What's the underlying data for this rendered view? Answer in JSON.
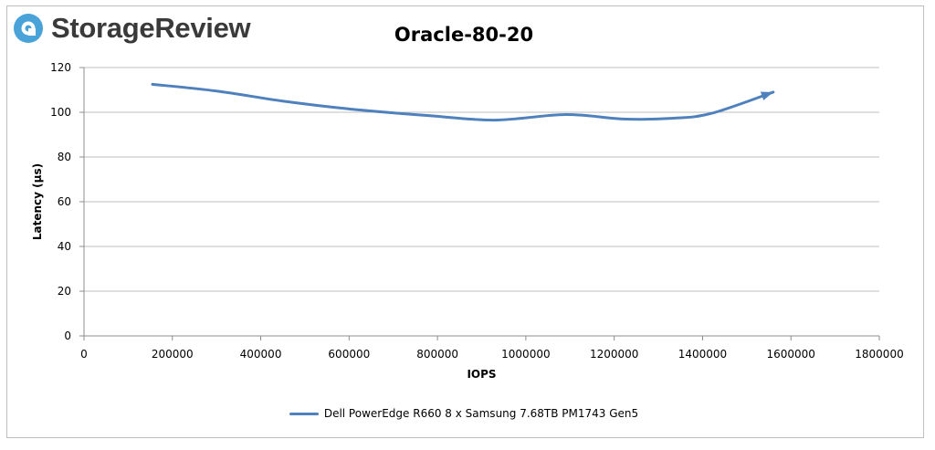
{
  "logo": {
    "text": "StorageReview",
    "accent": "#4aa3d8",
    "icon": "storagereview-logo-icon"
  },
  "chart_data": {
    "type": "line",
    "title": "Oracle-80-20",
    "xlabel": "IOPS",
    "ylabel": "Latency (µs)",
    "xlim": [
      0,
      1800000
    ],
    "ylim": [
      0,
      120
    ],
    "x_ticks": [
      "0",
      "200000",
      "400000",
      "600000",
      "800000",
      "1000000",
      "1200000",
      "1400000",
      "1600000",
      "1800000"
    ],
    "y_ticks": [
      "0",
      "20",
      "40",
      "60",
      "80",
      "100",
      "120"
    ],
    "grid": "horizontal",
    "legend_position": "bottom",
    "series": [
      {
        "name": "Dell PowerEdge R660 8 x Samsung 7.68TB PM1743 Gen5",
        "color": "#4f81bd",
        "x": [
          155000,
          300000,
          450000,
          600000,
          780000,
          930000,
          1090000,
          1220000,
          1330000,
          1420000,
          1560000
        ],
        "y": [
          112.5,
          109.5,
          105,
          101.5,
          98.5,
          96.5,
          99,
          97,
          97.3,
          99.5,
          109
        ]
      }
    ]
  }
}
